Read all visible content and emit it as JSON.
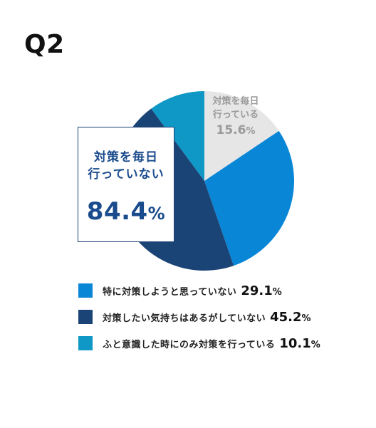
{
  "question_label": "Q2",
  "chart_data": {
    "type": "pie",
    "slices": [
      {
        "label": "対策を毎日行っている",
        "value": 15.6,
        "color": "#e6e6e6"
      },
      {
        "label": "特に対策しようと思っていない",
        "value": 29.1,
        "color": "#0a86d6"
      },
      {
        "label": "対策したい気持ちはあるがしていない",
        "value": 45.2,
        "color": "#1b4476"
      },
      {
        "label": "ふと意識した時にのみ対策を行っている",
        "value": 10.1,
        "color": "#0f97c5"
      }
    ],
    "start_angle_deg": 0,
    "direction": "clockwise"
  },
  "callout_not_daily": {
    "line1": "対策を毎日",
    "line2": "行っていない",
    "value": "84.4",
    "unit": "%"
  },
  "callout_daily": {
    "line1": "対策を毎日",
    "line2": "行っている",
    "value": "15.6",
    "unit": "%"
  },
  "legend": [
    {
      "label": "特に対策しようと思っていない",
      "value": "29.1",
      "unit": "%",
      "color": "#0a86d6"
    },
    {
      "label": "対策したい気持ちはあるがしていない",
      "value": "45.2",
      "unit": "%",
      "color": "#1b4476"
    },
    {
      "label": "ふと意識した時にのみ対策を行っている",
      "value": "10.1",
      "unit": "%",
      "color": "#0f97c5"
    }
  ]
}
